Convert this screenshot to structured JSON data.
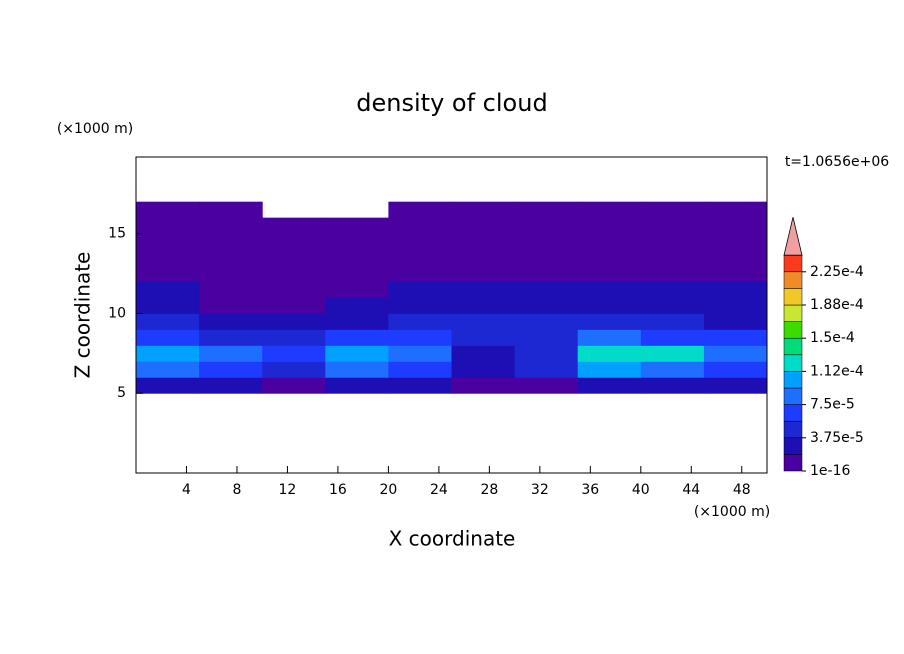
{
  "chart_data": {
    "type": "contour",
    "title": "density of cloud",
    "y_unit": "(×1000 m)",
    "x_unit": "(×1000 m)",
    "time_label": "t=1.0656e+06",
    "xlabel": "X coordinate",
    "ylabel": "Z coordinate",
    "xlim": [
      0,
      50
    ],
    "ylim": [
      0,
      19.8
    ],
    "xticks": [
      4,
      8,
      12,
      16,
      20,
      24,
      28,
      32,
      36,
      40,
      44,
      48
    ],
    "yticks": [
      5,
      10,
      15
    ],
    "x": [
      2.5,
      7.5,
      12.5,
      17.5,
      22.5,
      27.5,
      32.5,
      37.5,
      42.5,
      47.5
    ],
    "y": [
      5.5,
      6.5,
      7.5,
      8.5,
      9.5,
      10.5,
      11.5,
      12.5,
      13.5,
      14.5,
      15.5,
      16.5
    ],
    "z": [
      [
        2e-05,
        2e-05,
        1e-06,
        2e-05,
        2e-05,
        1e-06,
        1e-06,
        2e-05,
        2e-05,
        2e-05
      ],
      [
        9e-05,
        6e-05,
        5e-05,
        8e-05,
        7e-05,
        2e-05,
        4e-05,
        0.0001,
        8e-05,
        6e-05
      ],
      [
        0.00011,
        8e-05,
        7e-05,
        0.0001,
        9e-05,
        3e-05,
        5e-05,
        0.00013,
        0.00012,
        9e-05
      ],
      [
        7e-05,
        5e-05,
        4e-05,
        6e-05,
        6e-05,
        4e-05,
        5e-05,
        8e-05,
        6e-05,
        6e-05
      ],
      [
        4e-05,
        2e-05,
        2e-05,
        3e-05,
        4e-05,
        4e-05,
        4e-05,
        5e-05,
        4e-05,
        3e-05
      ],
      [
        2e-05,
        1e-06,
        1e-06,
        2e-05,
        2e-05,
        3e-05,
        2e-05,
        2e-05,
        2e-05,
        2e-05
      ],
      [
        2e-05,
        1e-06,
        1e-06,
        1e-06,
        2e-05,
        2e-05,
        2e-05,
        2e-05,
        2e-05,
        2e-05
      ],
      [
        1e-06,
        1e-06,
        1e-06,
        1e-06,
        1e-06,
        1e-06,
        1e-06,
        1e-06,
        1e-06,
        1e-06
      ],
      [
        1e-06,
        1e-06,
        1e-06,
        1e-06,
        1e-06,
        1e-06,
        1e-06,
        1e-06,
        1e-06,
        1e-06
      ],
      [
        1e-06,
        1e-06,
        1e-06,
        1e-06,
        1e-06,
        1e-06,
        1e-06,
        1e-06,
        1e-06,
        1e-06
      ],
      [
        1e-06,
        1e-06,
        1e-06,
        1e-06,
        1e-06,
        1e-06,
        1e-06,
        1e-06,
        1e-06,
        1e-06
      ],
      [
        1e-06,
        1e-06,
        null,
        null,
        1e-06,
        1e-06,
        1e-06,
        1e-06,
        1e-06,
        1e-06
      ]
    ],
    "colorbar": {
      "levels": [
        1e-16,
        1.875e-05,
        3.75e-05,
        5.625e-05,
        7.5e-05,
        9.375e-05,
        0.0001125,
        0.00013125,
        0.00015,
        0.00016875,
        0.0001875,
        0.00020625,
        0.000225
      ],
      "colors": [
        "#4b00a0",
        "#1e0fb4",
        "#1e28d2",
        "#1e3cff",
        "#1e6eff",
        "#00a0ff",
        "#00dcc8",
        "#00dc78",
        "#3cdc00",
        "#c8e632",
        "#f0c828",
        "#f08c28",
        "#fa3c1e"
      ],
      "over_color": "#f0a0a0",
      "ticks": [
        {
          "value": 1e-16,
          "label": "1e-16"
        },
        {
          "value": 3.75e-05,
          "label": "3.75e-5"
        },
        {
          "value": 7.5e-05,
          "label": "7.5e-5"
        },
        {
          "value": 0.0001125,
          "label": "1.12e-4"
        },
        {
          "value": 0.00015,
          "label": "1.5e-4"
        },
        {
          "value": 0.0001875,
          "label": "1.88e-4"
        },
        {
          "value": 0.000225,
          "label": "2.25e-4"
        }
      ]
    }
  }
}
